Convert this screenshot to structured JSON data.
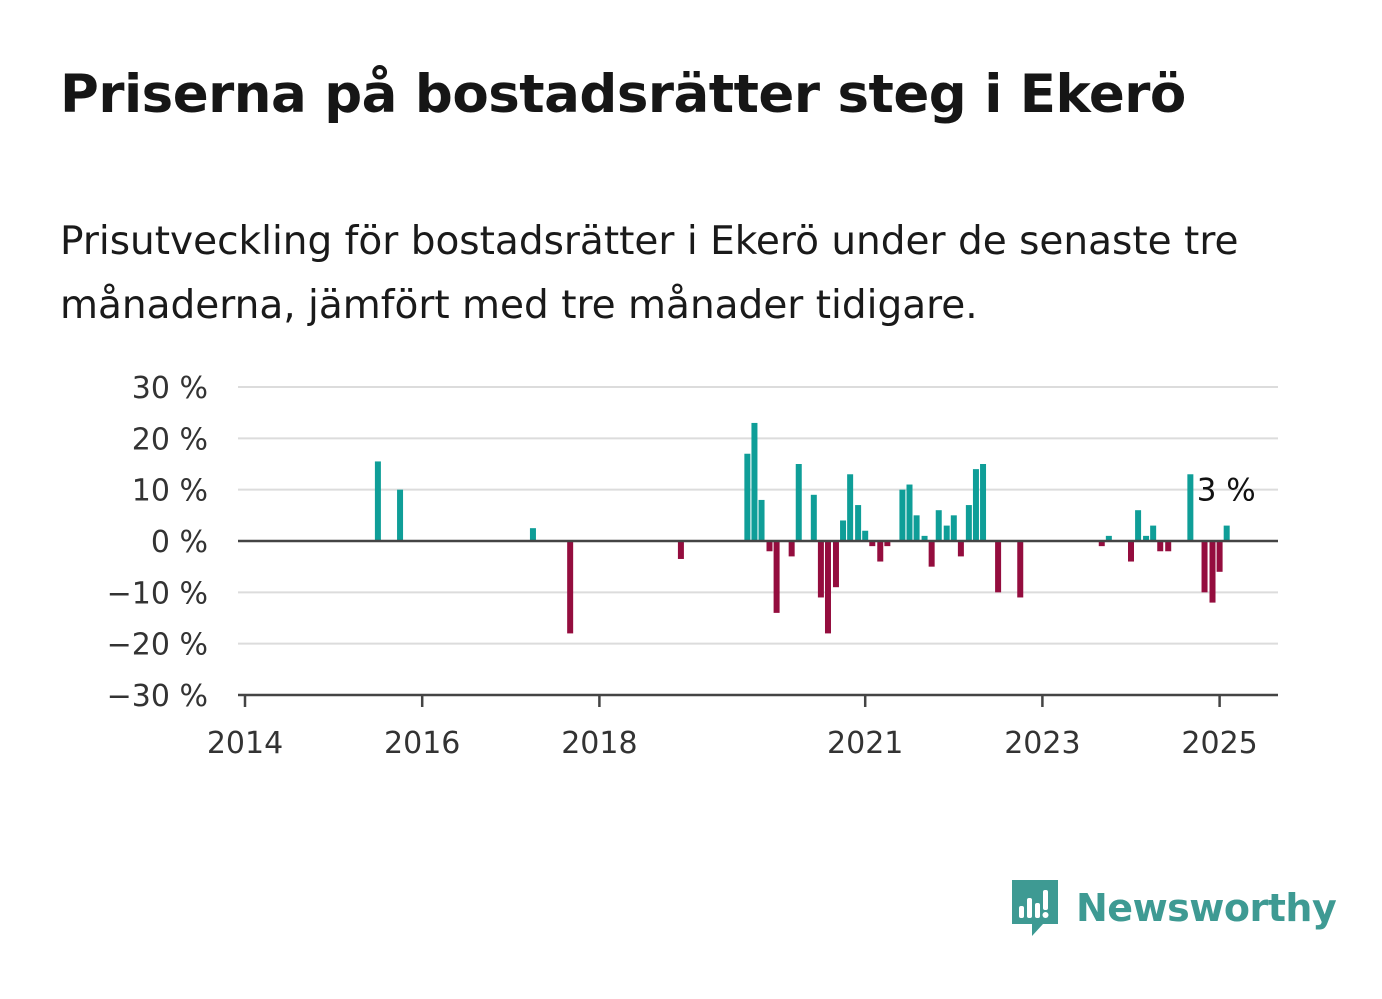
{
  "header": {
    "title": "Priserna på bostadsrätter steg i Ekerö",
    "subtitle": "Prisutveckling för bostadsrätter i Ekerö under de senaste tre månaderna, jämfört med tre månader tidigare."
  },
  "brand": {
    "name": "Newsworthy",
    "color": "#3e9a93",
    "icon": "newsworthy-logo-icon"
  },
  "colors": {
    "positive": "#0f9e98",
    "negative": "#940d3e",
    "grid": "#dcdcdc",
    "axis": "#444444"
  },
  "chart_data": {
    "type": "bar",
    "x_unit": "year",
    "y_unit": "%",
    "xlim": [
      2014,
      2025.65
    ],
    "ylim": [
      -30,
      30
    ],
    "x_ticks": [
      {
        "value": 2014,
        "label": "2014"
      },
      {
        "value": 2016,
        "label": "2016"
      },
      {
        "value": 2018,
        "label": "2018"
      },
      {
        "value": 2021,
        "label": "2021"
      },
      {
        "value": 2023,
        "label": "2023"
      },
      {
        "value": 2025,
        "label": "2025"
      }
    ],
    "y_ticks": [
      {
        "value": 30,
        "label": "30 %"
      },
      {
        "value": 20,
        "label": "20 %"
      },
      {
        "value": 10,
        "label": "10 %"
      },
      {
        "value": 0,
        "label": "0 %"
      },
      {
        "value": -10,
        "label": "−10 %"
      },
      {
        "value": -20,
        "label": "−20 %"
      },
      {
        "value": -30,
        "label": "−30 %"
      }
    ],
    "grid": true,
    "last_value_label": "3 %",
    "points": [
      {
        "x": 2015.5,
        "y": 15.5
      },
      {
        "x": 2015.75,
        "y": 10
      },
      {
        "x": 2017.25,
        "y": 2.5
      },
      {
        "x": 2017.67,
        "y": -18
      },
      {
        "x": 2018.92,
        "y": -3.5
      },
      {
        "x": 2019.67,
        "y": 17
      },
      {
        "x": 2019.75,
        "y": 23
      },
      {
        "x": 2019.83,
        "y": 8
      },
      {
        "x": 2019.92,
        "y": -2
      },
      {
        "x": 2020.0,
        "y": -14
      },
      {
        "x": 2020.17,
        "y": -3
      },
      {
        "x": 2020.25,
        "y": 15
      },
      {
        "x": 2020.42,
        "y": 9
      },
      {
        "x": 2020.5,
        "y": -11
      },
      {
        "x": 2020.58,
        "y": -18
      },
      {
        "x": 2020.67,
        "y": -9
      },
      {
        "x": 2020.75,
        "y": 4
      },
      {
        "x": 2020.83,
        "y": 13
      },
      {
        "x": 2020.92,
        "y": 7
      },
      {
        "x": 2021.0,
        "y": 2
      },
      {
        "x": 2021.08,
        "y": -1
      },
      {
        "x": 2021.17,
        "y": -4
      },
      {
        "x": 2021.25,
        "y": -1
      },
      {
        "x": 2021.42,
        "y": 10
      },
      {
        "x": 2021.5,
        "y": 11
      },
      {
        "x": 2021.58,
        "y": 5
      },
      {
        "x": 2021.67,
        "y": 1
      },
      {
        "x": 2021.75,
        "y": -5
      },
      {
        "x": 2021.83,
        "y": 6
      },
      {
        "x": 2021.92,
        "y": 3
      },
      {
        "x": 2022.0,
        "y": 5
      },
      {
        "x": 2022.08,
        "y": -3
      },
      {
        "x": 2022.17,
        "y": 7
      },
      {
        "x": 2022.25,
        "y": 14
      },
      {
        "x": 2022.33,
        "y": 15
      },
      {
        "x": 2022.5,
        "y": -10
      },
      {
        "x": 2022.75,
        "y": -11
      },
      {
        "x": 2023.67,
        "y": -1
      },
      {
        "x": 2023.75,
        "y": 1
      },
      {
        "x": 2024.0,
        "y": -4
      },
      {
        "x": 2024.08,
        "y": 6
      },
      {
        "x": 2024.17,
        "y": 1
      },
      {
        "x": 2024.25,
        "y": 3
      },
      {
        "x": 2024.33,
        "y": -2
      },
      {
        "x": 2024.42,
        "y": -2
      },
      {
        "x": 2024.67,
        "y": 13
      },
      {
        "x": 2024.83,
        "y": -10
      },
      {
        "x": 2024.92,
        "y": -12
      },
      {
        "x": 2025.0,
        "y": -6
      },
      {
        "x": 2025.08,
        "y": 3
      }
    ]
  }
}
